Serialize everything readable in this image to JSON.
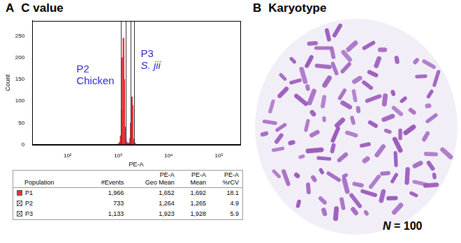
{
  "chart_data": {
    "type": "histogram",
    "label": "A",
    "title": "C value",
    "x_label": "PE-A",
    "y_label": "Count",
    "bins": [
      1000,
      1050,
      1100,
      1150,
      1200,
      1250,
      1300,
      1350,
      1400,
      1450,
      1500,
      1600,
      1700,
      1750,
      1800,
      1850,
      1900,
      1950,
      2000,
      2100,
      2200
    ],
    "counts": [
      2,
      5,
      20,
      80,
      200,
      245,
      150,
      40,
      10,
      5,
      3,
      4,
      15,
      50,
      95,
      110,
      90,
      40,
      12,
      3
    ],
    "color": "#e2323c",
    "log": "x",
    "xlim": [
      20,
      262144
    ],
    "xticks": [
      {
        "value": 100,
        "label": "10²"
      },
      {
        "value": 1000,
        "label": "10³"
      },
      {
        "value": 10000,
        "label": "10⁴"
      },
      {
        "value": 100000,
        "label": "10⁵"
      }
    ],
    "ylim": [
      0,
      285
    ],
    "yticks": [
      0,
      50,
      100,
      150,
      200,
      250
    ],
    "grid": false,
    "gates": [
      [
        1150,
        1400
      ],
      [
        1750,
        2050
      ]
    ],
    "annotations": [
      {
        "lines": [
          "P2",
          "Chicken"
        ],
        "color": "#2a2ad0"
      },
      {
        "lines": [
          "P3",
          "S. jii"
        ],
        "color": "#2a2ad0"
      }
    ],
    "table": {
      "header": [
        "Population",
        "#Events",
        [
          "PE-A",
          "Geo Mean"
        ],
        [
          "PE-A",
          "Mean"
        ],
        [
          "PE-A",
          "%rCV"
        ]
      ],
      "rows": [
        {
          "marker": "filled",
          "color": "#e2323c",
          "cells": [
            "P1",
            "1,966",
            "1,652",
            "1,692",
            "18.1"
          ]
        },
        {
          "marker": "crossed",
          "cells": [
            "P2",
            "733",
            "1,264",
            "1,265",
            "4.9"
          ]
        },
        {
          "marker": "crossed",
          "cells": [
            "P3",
            "1,133",
            "1,923",
            "1,928",
            "5.9"
          ]
        }
      ]
    }
  },
  "karyotype": {
    "label": "B",
    "title": "Karyotype",
    "caption": "N = 100",
    "color": "#9b5cbd"
  }
}
